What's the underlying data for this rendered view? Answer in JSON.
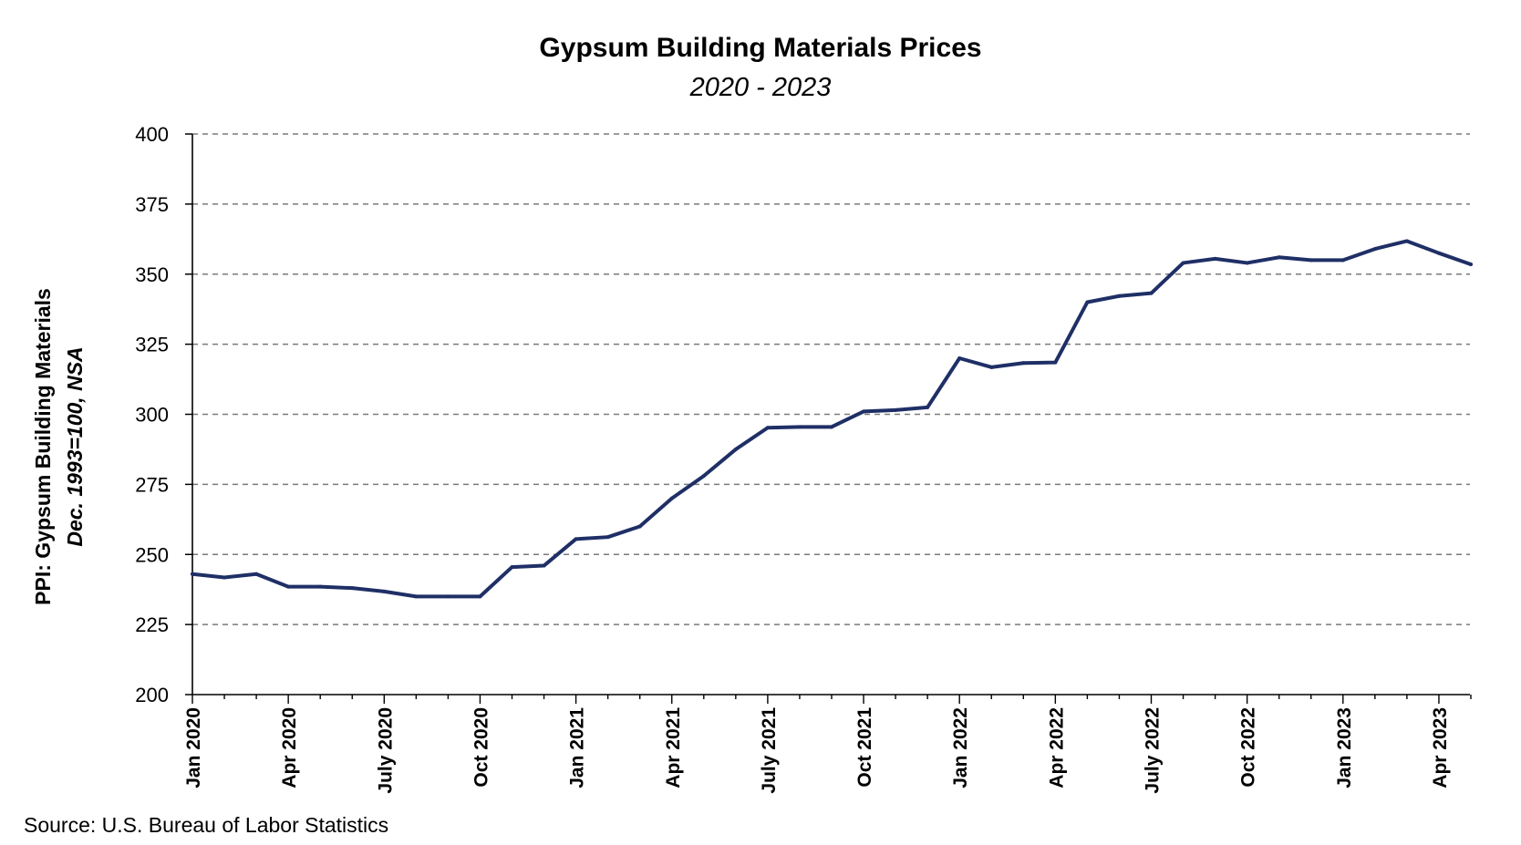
{
  "chart_data": {
    "type": "line",
    "title": "Gypsum Building Materials Prices",
    "subtitle": "2020 - 2023",
    "ylabel": "PPI: Gypsum Building Materials",
    "ylabel_sub": "Dec. 1993=100, NSA",
    "xlabel": "",
    "ylim": [
      200,
      400
    ],
    "yticks": [
      200,
      225,
      250,
      275,
      300,
      325,
      350,
      375,
      400
    ],
    "x_tick_labels": [
      "Jan 2020",
      "Apr 2020",
      "July 2020",
      "Oct 2020",
      "Jan 2021",
      "Apr 2021",
      "July 2021",
      "Oct 2021",
      "Jan 2022",
      "Apr 2022",
      "July 2022",
      "Oct 2022",
      "Jan 2023",
      "Apr 2023"
    ],
    "grid": "horizontal-dashed",
    "legend": "none",
    "x": [
      "2020-01",
      "2020-02",
      "2020-03",
      "2020-04",
      "2020-05",
      "2020-06",
      "2020-07",
      "2020-08",
      "2020-09",
      "2020-10",
      "2020-11",
      "2020-12",
      "2021-01",
      "2021-02",
      "2021-03",
      "2021-04",
      "2021-05",
      "2021-06",
      "2021-07",
      "2021-08",
      "2021-09",
      "2021-10",
      "2021-11",
      "2021-12",
      "2022-01",
      "2022-02",
      "2022-03",
      "2022-04",
      "2022-05",
      "2022-06",
      "2022-07",
      "2022-08",
      "2022-09",
      "2022-10",
      "2022-11",
      "2022-12",
      "2023-01",
      "2023-02",
      "2023-03",
      "2023-04",
      "2023-05"
    ],
    "series": [
      {
        "color": "#1f2f66",
        "values": [
          243,
          241.8,
          243,
          238.5,
          238.5,
          238,
          236.8,
          235,
          235,
          235,
          245.5,
          246,
          255.5,
          256.2,
          260,
          270,
          278,
          287.5,
          295.2,
          295.5,
          295.5,
          301,
          301.5,
          302.5,
          320,
          316.8,
          318.3,
          318.5,
          340,
          342.2,
          343.2,
          354,
          355.5,
          354,
          356,
          355,
          355,
          359,
          361.8,
          357.5,
          353.5
        ]
      }
    ]
  },
  "source": "Source: U.S. Bureau of Labor Statistics"
}
